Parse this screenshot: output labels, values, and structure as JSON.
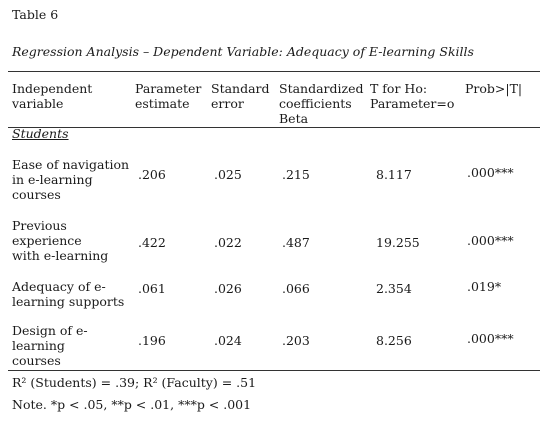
{
  "table_title": "Table 6",
  "caption": "Regression Analysis – Dependent Variable: Adequacy of E-learning Skills",
  "headers": [
    [
      "Independent",
      "variable"
    ],
    [
      "Parameter",
      "estimate"
    ],
    [
      "Standard",
      "error"
    ],
    [
      "Standardized",
      "coefficients",
      "Beta"
    ],
    [
      "T for Ho:",
      "Parameter=o"
    ],
    [
      "Prob>|T|"
    ]
  ],
  "section_label": "Students",
  "rows": [
    {
      "variable": [
        "Ease of navigation",
        "in e-learning",
        "courses"
      ],
      "estimate": ".206",
      "error": ".025",
      "beta": ".215",
      "t": "8.117",
      "prob": ".000***"
    },
    {
      "variable": [
        "Previous",
        "experience",
        "with e-learning"
      ],
      "estimate": ".422",
      "error": ".022",
      "beta": ".487",
      "t": "19.255",
      "prob": ".000***"
    },
    {
      "variable": [
        "Adequacy of e-",
        "learning supports"
      ],
      "estimate": ".061",
      "error": ".026",
      "beta": ".066",
      "t": "2.354",
      "prob": ".019*"
    },
    {
      "variable": [
        "Design of e-",
        "learning",
        "courses"
      ],
      "estimate": ".196",
      "error": ".024",
      "beta": ".203",
      "t": "8.256",
      "prob": ".000***"
    }
  ],
  "r_squared_note": "R² (Students) = .39; R² (Faculty) = .51",
  "significance_note": "Note. *p < .05, **p < .01, ***p < .001"
}
